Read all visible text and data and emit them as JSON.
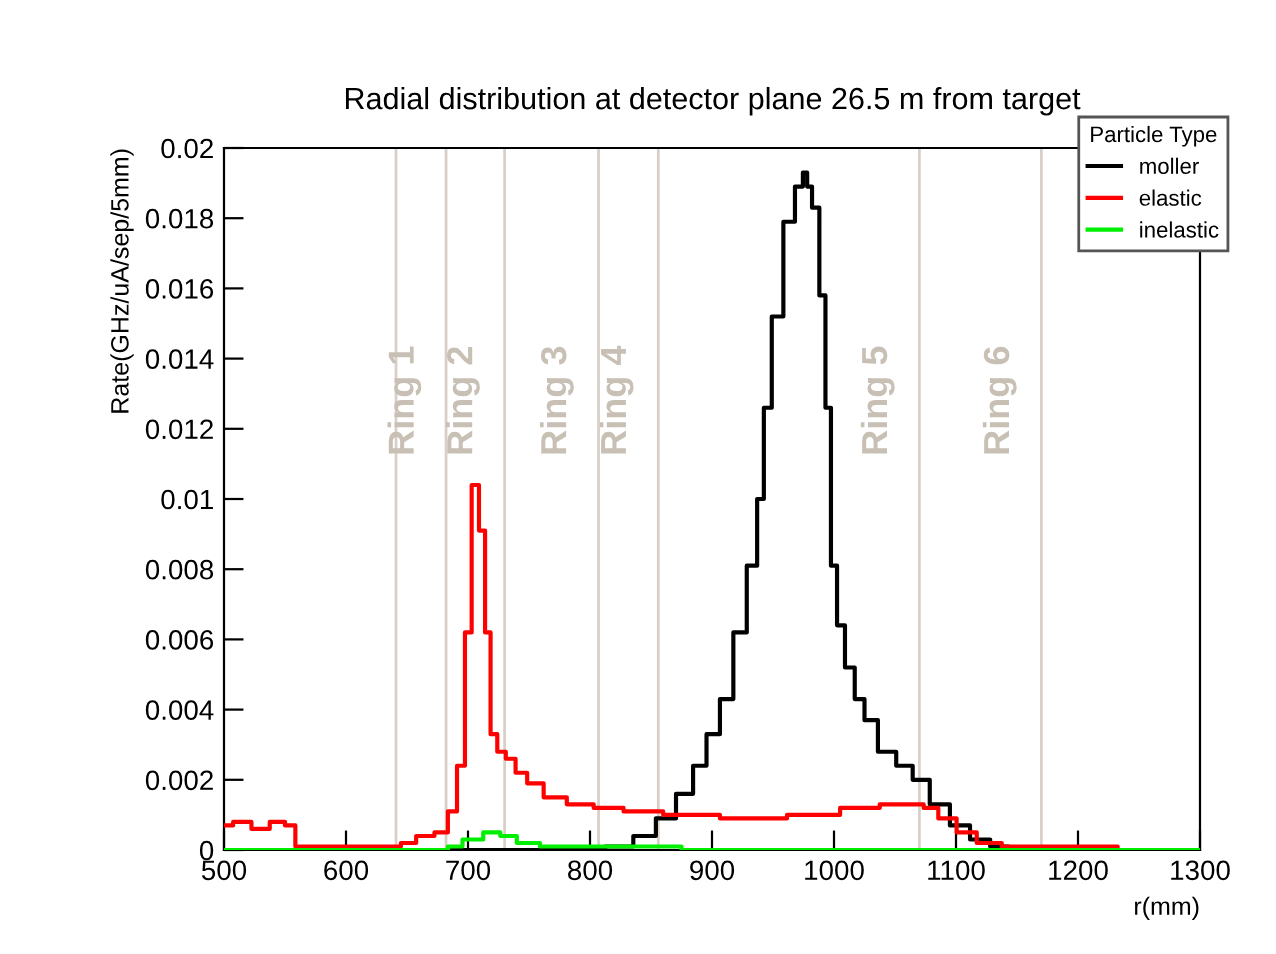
{
  "chart_data": {
    "type": "step",
    "title": "Radial distribution at detector plane 26.5 m from target",
    "xlabel": "r(mm)",
    "ylabel": "Rate(GHz/uA/sep/5mm)",
    "legend_title": "Particle Type",
    "legend": "top right",
    "grid": false,
    "xlim": [
      500,
      1300
    ],
    "ylim": [
      0,
      0.02
    ],
    "xticks": [
      500,
      600,
      700,
      800,
      900,
      1000,
      1100,
      1200,
      1300
    ],
    "yticks": [
      0,
      0.002,
      0.004,
      0.006,
      0.008,
      0.01,
      0.012,
      0.014,
      0.016,
      0.018,
      0.02
    ],
    "series": [
      {
        "name": "moller",
        "color": "#000000",
        "x": [
          500,
          800,
          825,
          846,
          862,
          879,
          890,
          901,
          912,
          923,
          934,
          940,
          945,
          953,
          964,
          972,
          977,
          979,
          985,
          991,
          995,
          1000,
          1005,
          1013,
          1021,
          1029,
          1043,
          1059,
          1070,
          1087,
          1103,
          1120,
          1136,
          1150,
          1300
        ],
        "values": [
          0,
          0,
          0.0001,
          0.0004,
          0.0009,
          0.0016,
          0.0024,
          0.0033,
          0.0043,
          0.0062,
          0.0081,
          0.01,
          0.0126,
          0.0152,
          0.0179,
          0.0189,
          0.0193,
          0.0189,
          0.0183,
          0.0158,
          0.0126,
          0.0081,
          0.0064,
          0.0052,
          0.0043,
          0.0037,
          0.0028,
          0.0024,
          0.002,
          0.0013,
          0.0007,
          0.0003,
          0.0001,
          0,
          0
        ]
      },
      {
        "name": "elastic",
        "color": "#ff0000",
        "x": [
          500,
          515,
          530,
          545,
          555,
          562,
          600,
          640,
          650,
          665,
          680,
          687,
          695,
          700,
          706,
          712,
          716,
          721,
          727,
          735,
          743,
          754,
          770,
          792,
          814,
          841,
          879,
          934,
          989,
          1021,
          1054,
          1068,
          1079,
          1092,
          1109,
          1125,
          1150,
          1230,
          1235,
          1300
        ],
        "values": [
          0.0007,
          0.0008,
          0.0006,
          0.0008,
          0.0007,
          0.0001,
          0.0001,
          0.0001,
          0.0002,
          0.0004,
          0.0005,
          0.0011,
          0.0024,
          0.0062,
          0.0104,
          0.0091,
          0.0062,
          0.0033,
          0.0028,
          0.0026,
          0.0022,
          0.0019,
          0.0015,
          0.0013,
          0.0012,
          0.0011,
          0.001,
          0.0009,
          0.001,
          0.0012,
          0.0013,
          0.0013,
          0.0012,
          0.0009,
          0.0005,
          0.0002,
          0.0001,
          0.0001,
          0,
          0
        ]
      },
      {
        "name": "inelastic",
        "color": "#00ee00",
        "x": [
          500,
          680,
          687,
          704,
          721,
          732,
          748,
          770,
          800,
          850,
          900,
          1300
        ],
        "values": [
          0,
          0,
          0.0001,
          0.0003,
          0.0005,
          0.0004,
          0.0002,
          0.0001,
          0.0001,
          0.0001,
          0,
          0
        ]
      }
    ],
    "ref_lines": [
      {
        "axis": "x",
        "value": 641,
        "color": "#d8d0c8"
      },
      {
        "axis": "x",
        "value": 682,
        "color": "#d8d0c8",
        "label": "Ring 1"
      },
      {
        "axis": "x",
        "value": 730,
        "color": "#d8d0c8",
        "label": "Ring 2"
      },
      {
        "axis": "x",
        "value": 807,
        "color": "#d8d0c8",
        "label": "Ring 3"
      },
      {
        "axis": "x",
        "value": 856,
        "color": "#d8d0c8",
        "label": "Ring 4"
      },
      {
        "axis": "x",
        "value": 1070,
        "color": "#d8d0c8",
        "label": "Ring 5"
      },
      {
        "axis": "x",
        "value": 1170,
        "color": "#d8d0c8",
        "label": "Ring 6"
      }
    ]
  }
}
